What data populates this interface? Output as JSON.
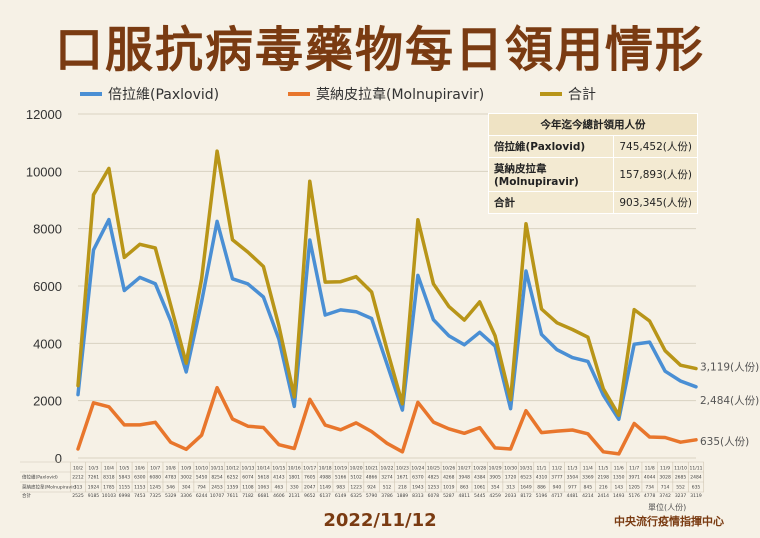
{
  "title": "口服抗病毒藥物每日領用情形",
  "date_label": "2022/11/12",
  "unit_label": "單位(人份)",
  "source_label": "中央流行疫情指揮中心",
  "summary": {
    "header": "今年迄今總計領用人份",
    "rows": [
      {
        "label": "倍拉維(Paxlovid)",
        "value": "745,452(人份)"
      },
      {
        "label": "莫納皮拉韋(Molnupiravir)",
        "value": "157,893(人份)"
      },
      {
        "label": "合計",
        "value": "903,345(人份)"
      }
    ]
  },
  "colors": {
    "paxlovid": "#4a8fd4",
    "molnupiravir": "#e8762c",
    "total": "#b89518",
    "title": "#7a3b12"
  },
  "chart_data": {
    "type": "line",
    "title": "口服抗病毒藥物每日領用情形",
    "ylim": [
      0,
      12000
    ],
    "yticks": [
      0,
      2000,
      4000,
      6000,
      8000,
      10000,
      12000
    ],
    "grid": true,
    "legend_position": "top",
    "x": [
      "10/2",
      "10/3",
      "10/4",
      "10/5",
      "10/6",
      "10/7",
      "10/8",
      "10/9",
      "10/10",
      "10/11",
      "10/12",
      "10/13",
      "10/14",
      "10/15",
      "10/16",
      "10/17",
      "10/18",
      "10/19",
      "10/20",
      "10/21",
      "10/22",
      "10/23",
      "10/24",
      "10/25",
      "10/26",
      "10/27",
      "10/28",
      "10/29",
      "10/30",
      "10/31",
      "11/1",
      "11/2",
      "11/3",
      "11/4",
      "11/5",
      "11/6",
      "11/7",
      "11/8",
      "11/9",
      "11/10",
      "11/11"
    ],
    "series": [
      {
        "name": "倍拉維(Paxlovid)",
        "color": "#4a8fd4",
        "end_label": "2,484(人份)",
        "values": [
          2212,
          7261,
          8318,
          5843,
          6300,
          6080,
          4783,
          3002,
          5450,
          8254,
          6252,
          6074,
          5618,
          4143,
          1801,
          7605,
          4988,
          5166,
          5102,
          4866,
          3274,
          1671,
          6370,
          4825,
          4268,
          3948,
          4384,
          3905,
          1720,
          6523,
          4310,
          3777,
          3504,
          3369,
          2198,
          1350,
          3971,
          4044,
          3028,
          2685,
          2484
        ]
      },
      {
        "name": "莫納皮拉韋(Molnupiravir)",
        "color": "#e8762c",
        "end_label": "635(人份)",
        "values": [
          313,
          1924,
          1785,
          1155,
          1153,
          1245,
          546,
          304,
          794,
          2453,
          1359,
          1108,
          1063,
          463,
          330,
          2047,
          1149,
          983,
          1223,
          924,
          512,
          218,
          1943,
          1253,
          1019,
          863,
          1061,
          354,
          313,
          1649,
          886,
          940,
          977,
          845,
          216,
          143,
          1205,
          734,
          714,
          552,
          635
        ]
      },
      {
        "name": "合計",
        "color": "#b89518",
        "end_label": "3,119(人份)",
        "values": [
          2525,
          9185,
          10103,
          6998,
          7453,
          7325,
          5329,
          3306,
          6244,
          10707,
          7611,
          7182,
          6681,
          4606,
          2131,
          9652,
          6137,
          6149,
          6325,
          5790,
          3786,
          1889,
          8313,
          6078,
          5287,
          4811,
          5445,
          4259,
          2033,
          8172,
          5196,
          4717,
          4481,
          4214,
          2414,
          1493,
          5176,
          4778,
          3742,
          3237,
          3119
        ]
      }
    ]
  }
}
